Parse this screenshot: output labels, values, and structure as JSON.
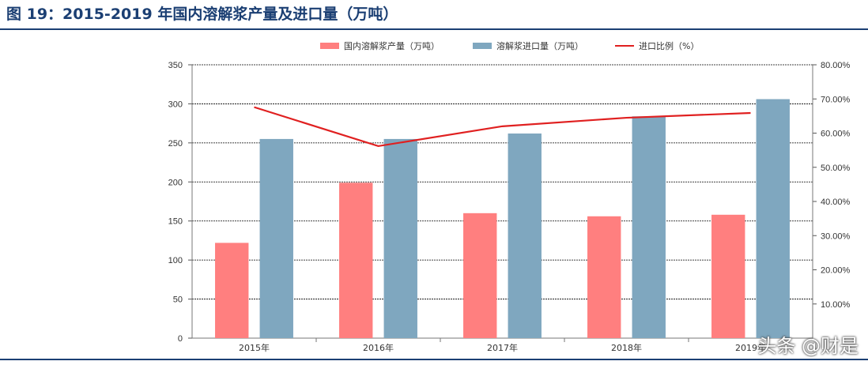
{
  "figure_title": "图 19：2015-2019 年国内溶解浆产量及进口量（万吨）",
  "watermark": "头条 @财是",
  "colors": {
    "title": "#1b3f73",
    "domestic": "#ff7f7f",
    "import": "#7fa7bf",
    "ratio": "#e02020"
  },
  "chart_data": {
    "type": "bar",
    "categories": [
      "2015年",
      "2016年",
      "2017年",
      "2018年",
      "2019年"
    ],
    "series": [
      {
        "name": "国内溶解浆产量（万吨）",
        "type": "bar",
        "axis": "left",
        "values": [
          122,
          199,
          160,
          156,
          158
        ]
      },
      {
        "name": "溶解浆进口量（万吨）",
        "type": "bar",
        "axis": "left",
        "values": [
          255,
          255,
          262,
          284,
          306
        ]
      },
      {
        "name": "进口比例（%）",
        "type": "line",
        "axis": "right",
        "values": [
          67.6,
          56.2,
          62.0,
          64.5,
          65.9
        ]
      }
    ],
    "ylim": [
      0,
      350
    ],
    "yticks": [
      "0",
      "50",
      "100",
      "150",
      "200",
      "250",
      "300",
      "350"
    ],
    "y2lim": [
      0,
      80
    ],
    "y2ticks": [
      "10.00%",
      "20.00%",
      "30.00%",
      "40.00%",
      "50.00%",
      "60.00%",
      "70.00%",
      "80.00%"
    ],
    "grid": true,
    "legend": "top"
  }
}
